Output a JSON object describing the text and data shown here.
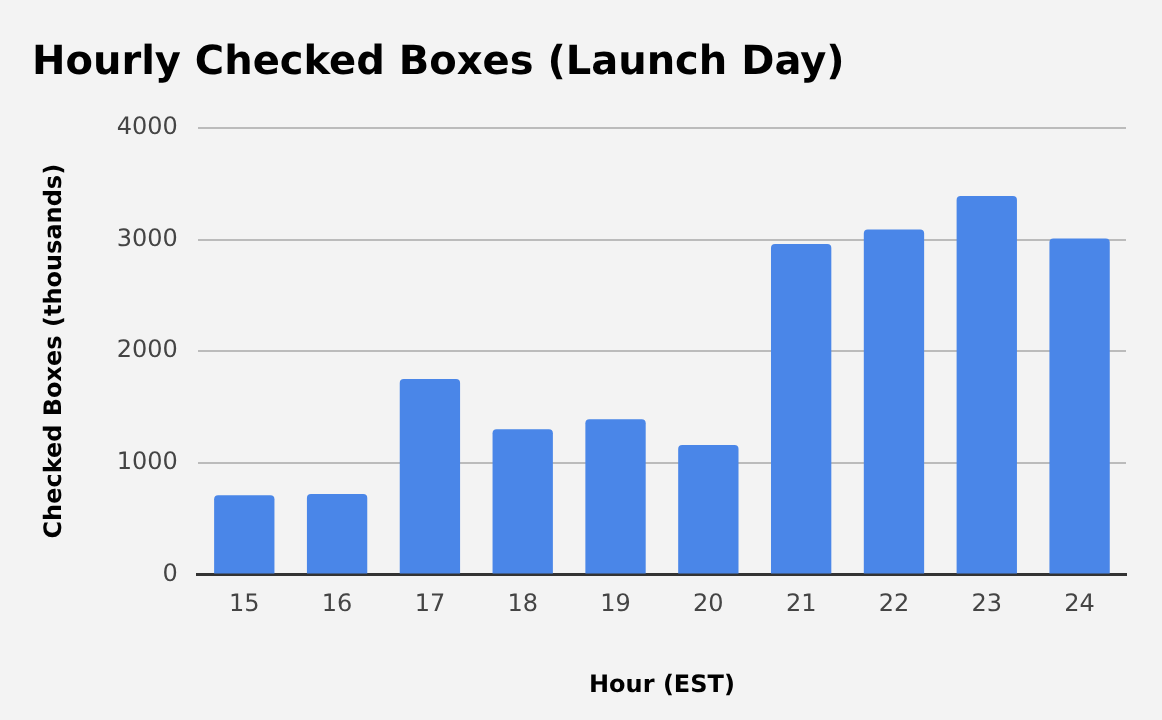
{
  "chart_data": {
    "type": "bar",
    "title": "Hourly Checked Boxes (Launch Day)",
    "xlabel": "Hour (EST)",
    "ylabel": "Checked Boxes (thousands)",
    "categories": [
      "15",
      "16",
      "17",
      "18",
      "19",
      "20",
      "21",
      "22",
      "23",
      "24"
    ],
    "values": [
      710,
      720,
      1750,
      1300,
      1390,
      1160,
      2960,
      3090,
      3390,
      3010
    ],
    "color": "#4a86e8",
    "ylim": [
      0,
      4000
    ],
    "yticks": [
      0,
      1000,
      2000,
      3000,
      4000
    ],
    "grid": "y",
    "legend": false
  }
}
